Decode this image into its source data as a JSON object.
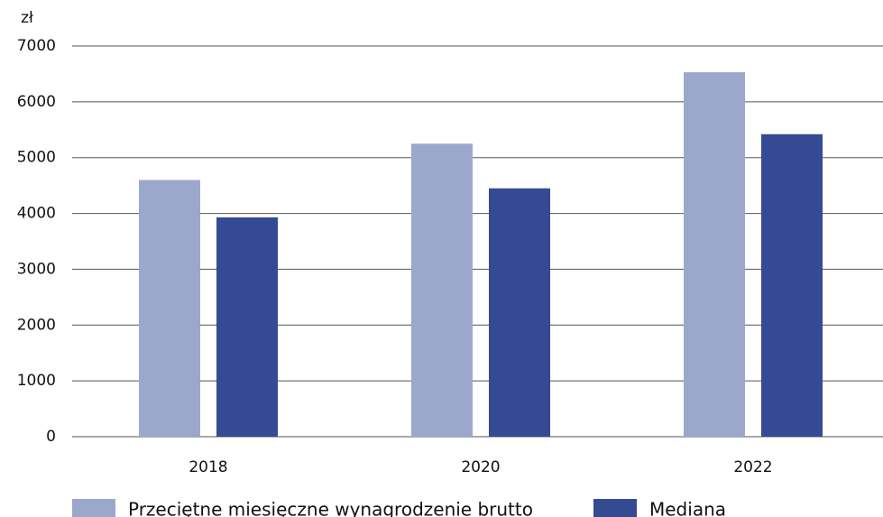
{
  "chart_data": {
    "type": "bar",
    "y_label": "zł",
    "categories": [
      "2018",
      "2020",
      "2022"
    ],
    "series": [
      {
        "name": "Przeciętne miesięczne wynagrodzenie brutto",
        "color": "#9ca8cb",
        "values": [
          4600,
          5250,
          6530
        ]
      },
      {
        "name": "Mediana",
        "color": "#344a93",
        "values": [
          3930,
          4450,
          5420
        ]
      }
    ],
    "ylim": [
      0,
      7000
    ],
    "yticks": [
      0,
      1000,
      2000,
      3000,
      4000,
      5000,
      6000,
      7000
    ],
    "grid": true,
    "legend": "bottom"
  }
}
